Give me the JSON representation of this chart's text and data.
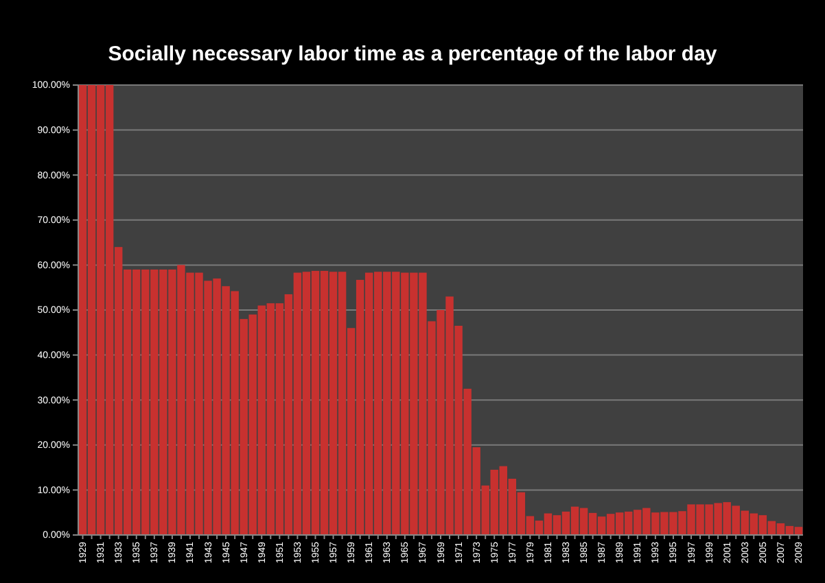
{
  "chart_data": {
    "type": "bar",
    "title": "Socially necessary labor time as a percentage of the labor day",
    "categories": [
      "1929",
      null,
      "1931",
      null,
      "1933",
      null,
      "1935",
      null,
      "1937",
      null,
      "1939",
      null,
      "1941",
      null,
      "1943",
      null,
      "1945",
      null,
      "1947",
      null,
      "1949",
      null,
      "1951",
      null,
      "1953",
      null,
      "1955",
      null,
      "1957",
      null,
      "1959",
      null,
      "1961",
      null,
      "1963",
      null,
      "1965",
      null,
      "1967",
      null,
      "1969",
      null,
      "1971",
      null,
      "1973",
      null,
      "1975",
      null,
      "1977",
      null,
      "1979",
      null,
      "1981",
      null,
      "1983",
      null,
      "1985",
      null,
      "1987",
      null,
      "1989",
      null,
      "1991",
      null,
      "1993",
      null,
      "1995",
      null,
      "1997",
      null,
      "1999",
      null,
      "2001",
      null,
      "2003",
      null,
      "2005",
      null,
      "2007",
      null,
      "2009"
    ],
    "values": [
      100,
      100,
      100,
      100,
      64,
      59,
      59,
      59,
      59,
      59,
      59,
      60,
      58.3,
      58.3,
      56.5,
      57,
      55.3,
      54.2,
      48,
      49,
      51,
      51.5,
      51.5,
      53.5,
      58.3,
      58.5,
      58.7,
      58.7,
      58.5,
      58.5,
      46,
      56.7,
      58.3,
      58.5,
      58.5,
      58.5,
      58.3,
      58.3,
      58.3,
      47.5,
      50,
      53,
      46.5,
      32.5,
      19.5,
      11,
      14.5,
      15.3,
      12.5,
      9.5,
      4.2,
      3.2,
      4.8,
      4.4,
      5.2,
      6.3,
      6,
      4.9,
      4.1,
      4.7,
      5,
      5.2,
      5.6,
      6,
      5,
      5.1,
      5.1,
      5.3,
      6.8,
      6.8,
      6.8,
      7.1,
      7.3,
      6.5,
      5.4,
      4.8,
      4.4,
      3.1,
      2.6,
      2,
      1.8
    ],
    "color": "#c8312f",
    "ylim": [
      0,
      100
    ],
    "yticks": [
      {
        "value": 0,
        "label": "0.00%"
      },
      {
        "value": 10,
        "label": "10.00%"
      },
      {
        "value": 20,
        "label": "20.00%"
      },
      {
        "value": 30,
        "label": "30.00%"
      },
      {
        "value": 40,
        "label": "40.00%"
      },
      {
        "value": 50,
        "label": "50.00%"
      },
      {
        "value": 60,
        "label": "60.00%"
      },
      {
        "value": 70,
        "label": "70.00%"
      },
      {
        "value": 80,
        "label": "80.00%"
      },
      {
        "value": 90,
        "label": "90.00%"
      },
      {
        "value": 100,
        "label": "100.00%"
      }
    ],
    "grid": "y"
  }
}
